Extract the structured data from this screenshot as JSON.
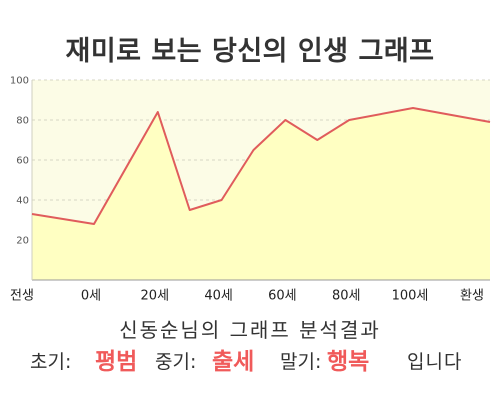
{
  "chart_data": {
    "type": "area",
    "title": "재미로 보는 당신의 인생 그래프",
    "ylim": [
      0,
      100
    ],
    "y_ticks": [
      20,
      40,
      60,
      80,
      100
    ],
    "x_ticks": [
      "전생",
      "0세",
      "20세",
      "40세",
      "60세",
      "80세",
      "100세",
      "환생"
    ],
    "grid": true,
    "series": [
      {
        "points": [
          {
            "x": "전생",
            "y": 33
          },
          {
            "x": 0,
            "y": 28
          },
          {
            "x": 20,
            "y": 84
          },
          {
            "x": 30,
            "y": 35
          },
          {
            "x": 40,
            "y": 40
          },
          {
            "x": 50,
            "y": 65
          },
          {
            "x": 60,
            "y": 80
          },
          {
            "x": 70,
            "y": 70
          },
          {
            "x": 80,
            "y": 80
          },
          {
            "x": 100,
            "y": 86
          },
          {
            "x": "환생",
            "y": 79
          }
        ]
      }
    ]
  },
  "colors": {
    "line": "#e05c5c",
    "area_fill": "#ffffc2",
    "plot_background": "#fcfce6",
    "highlight": "#f05a5a",
    "text": "#333333"
  },
  "analysis": {
    "heading": "신동순님의 그래프 분석결과",
    "early_label": "초기:",
    "early_value": "평범",
    "middle_label": "중기:",
    "middle_value": "출세",
    "late_label": "말기:",
    "late_value": "행복",
    "suffix": "입니다"
  }
}
